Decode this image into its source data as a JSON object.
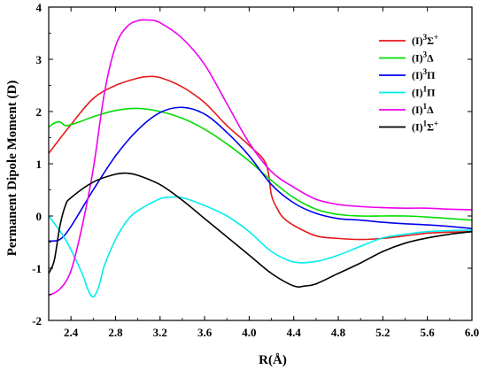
{
  "chart_data": {
    "type": "line",
    "xlabel": "R(Å)",
    "ylabel": "Permanent Dipole Moment (D)",
    "xlim": [
      2.2,
      6.0
    ],
    "ylim": [
      -2,
      4
    ],
    "x_ticks": [
      "2.4",
      "2.8",
      "3.2",
      "3.6",
      "4.0",
      "4.4",
      "4.8",
      "5.2",
      "5.6",
      "6.0"
    ],
    "y_ticks": [
      "-2",
      "-1",
      "0",
      "1",
      "2",
      "3",
      "4"
    ],
    "grid": false,
    "legend_position": "top-right",
    "series": [
      {
        "name": "(I)3Σ+",
        "label": {
          "base": "(I)",
          "sup": "3",
          "sym": "Σ",
          "sup2": "+"
        },
        "color": "#e41a1c",
        "x": [
          2.2,
          2.4,
          2.6,
          2.8,
          3.0,
          3.1,
          3.2,
          3.4,
          3.6,
          3.8,
          4.0,
          4.15,
          4.2,
          4.25,
          4.3,
          4.4,
          4.6,
          4.8,
          5.0,
          5.2,
          5.4,
          5.6,
          5.8,
          6.0
        ],
        "y": [
          1.2,
          1.75,
          2.25,
          2.5,
          2.64,
          2.67,
          2.65,
          2.47,
          2.17,
          1.73,
          1.35,
          1.0,
          0.4,
          0.15,
          -0.02,
          -0.18,
          -0.38,
          -0.43,
          -0.45,
          -0.43,
          -0.38,
          -0.33,
          -0.31,
          -0.3
        ]
      },
      {
        "name": "(I)3Δ",
        "label": {
          "base": "(I)",
          "sup": "3",
          "sym": "Δ",
          "sup2": ""
        },
        "color": "#00dd00",
        "x": [
          2.2,
          2.25,
          2.3,
          2.35,
          2.4,
          2.5,
          2.6,
          2.8,
          3.0,
          3.2,
          3.4,
          3.6,
          3.8,
          4.0,
          4.2,
          4.4,
          4.6,
          4.8,
          5.0,
          5.2,
          5.4,
          5.6,
          5.8,
          6.0
        ],
        "y": [
          1.7,
          1.78,
          1.8,
          1.73,
          1.75,
          1.82,
          1.9,
          2.02,
          2.06,
          2.0,
          1.87,
          1.66,
          1.38,
          1.05,
          0.68,
          0.35,
          0.13,
          0.03,
          0.0,
          0.0,
          0.0,
          -0.02,
          -0.05,
          -0.08
        ]
      },
      {
        "name": "(I)3Π",
        "label": {
          "base": "(I)",
          "sup": "3",
          "sym": "Π",
          "sup2": ""
        },
        "color": "#0000ee",
        "x": [
          2.2,
          2.3,
          2.4,
          2.6,
          2.8,
          3.0,
          3.2,
          3.4,
          3.6,
          3.8,
          4.0,
          4.2,
          4.4,
          4.6,
          4.8,
          5.0,
          5.2,
          5.4,
          5.6,
          5.8,
          6.0
        ],
        "y": [
          -0.48,
          -0.45,
          -0.2,
          0.5,
          1.15,
          1.65,
          1.98,
          2.08,
          1.95,
          1.6,
          1.15,
          0.6,
          0.25,
          0.05,
          -0.05,
          -0.08,
          -0.12,
          -0.15,
          -0.17,
          -0.2,
          -0.24
        ]
      },
      {
        "name": "(I)1Π",
        "label": {
          "base": "(I)",
          "sup": "1",
          "sym": "Π",
          "sup2": ""
        },
        "color": "#00eeee",
        "x": [
          2.2,
          2.35,
          2.5,
          2.55,
          2.6,
          2.65,
          2.7,
          2.8,
          2.9,
          3.0,
          3.2,
          3.3,
          3.4,
          3.6,
          3.8,
          4.0,
          4.2,
          4.4,
          4.6,
          4.8,
          5.0,
          5.2,
          5.4,
          5.6,
          5.8,
          6.0
        ],
        "y": [
          0.0,
          -0.45,
          -1.1,
          -1.4,
          -1.55,
          -1.35,
          -0.95,
          -0.45,
          -0.1,
          0.1,
          0.33,
          0.36,
          0.35,
          0.2,
          0.0,
          -0.3,
          -0.68,
          -0.88,
          -0.87,
          -0.75,
          -0.58,
          -0.42,
          -0.35,
          -0.3,
          -0.28,
          -0.27
        ]
      },
      {
        "name": "(I)1Δ",
        "label": {
          "base": "(I)",
          "sup": "1",
          "sym": "Δ",
          "sup2": ""
        },
        "color": "#ee00ee",
        "x": [
          2.2,
          2.3,
          2.4,
          2.5,
          2.6,
          2.7,
          2.8,
          2.9,
          3.0,
          3.1,
          3.2,
          3.4,
          3.6,
          3.8,
          4.0,
          4.2,
          4.4,
          4.6,
          4.8,
          5.0,
          5.2,
          5.4,
          5.6,
          5.8,
          6.0
        ],
        "y": [
          -1.52,
          -1.4,
          -1.05,
          -0.2,
          0.9,
          2.35,
          3.25,
          3.62,
          3.74,
          3.75,
          3.7,
          3.4,
          2.9,
          2.15,
          1.4,
          0.85,
          0.55,
          0.32,
          0.22,
          0.18,
          0.16,
          0.15,
          0.15,
          0.13,
          0.12
        ]
      },
      {
        "name": "(I)1Σ+",
        "label": {
          "base": "(I)",
          "sup": "1",
          "sym": "Σ",
          "sup2": "+"
        },
        "color": "#000000",
        "x": [
          2.2,
          2.25,
          2.3,
          2.35,
          2.4,
          2.6,
          2.8,
          2.9,
          3.0,
          3.2,
          3.4,
          3.6,
          3.8,
          4.0,
          4.2,
          4.4,
          4.5,
          4.6,
          4.8,
          5.0,
          5.2,
          5.4,
          5.6,
          5.8,
          6.0
        ],
        "y": [
          -1.1,
          -0.85,
          -0.2,
          0.2,
          0.35,
          0.65,
          0.8,
          0.82,
          0.78,
          0.6,
          0.3,
          -0.05,
          -0.4,
          -0.75,
          -1.1,
          -1.34,
          -1.34,
          -1.3,
          -1.1,
          -0.9,
          -0.68,
          -0.52,
          -0.42,
          -0.35,
          -0.3
        ]
      }
    ]
  }
}
